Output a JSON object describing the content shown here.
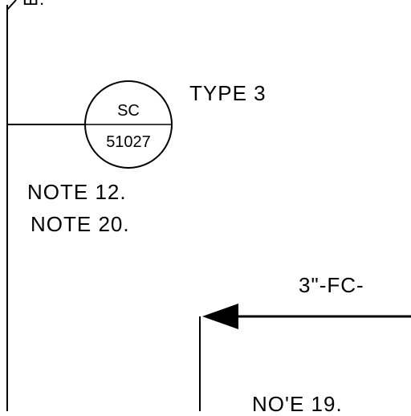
{
  "top_label": "Ш.",
  "instrument": {
    "tag_top": "SC",
    "tag_bottom": "51027",
    "type_label": "TYPE 3"
  },
  "notes": {
    "note_a": "NOTE 12.",
    "note_b": "NOTE 20.",
    "note_c": "NO'E 19."
  },
  "line_label": "3\"-FC-"
}
